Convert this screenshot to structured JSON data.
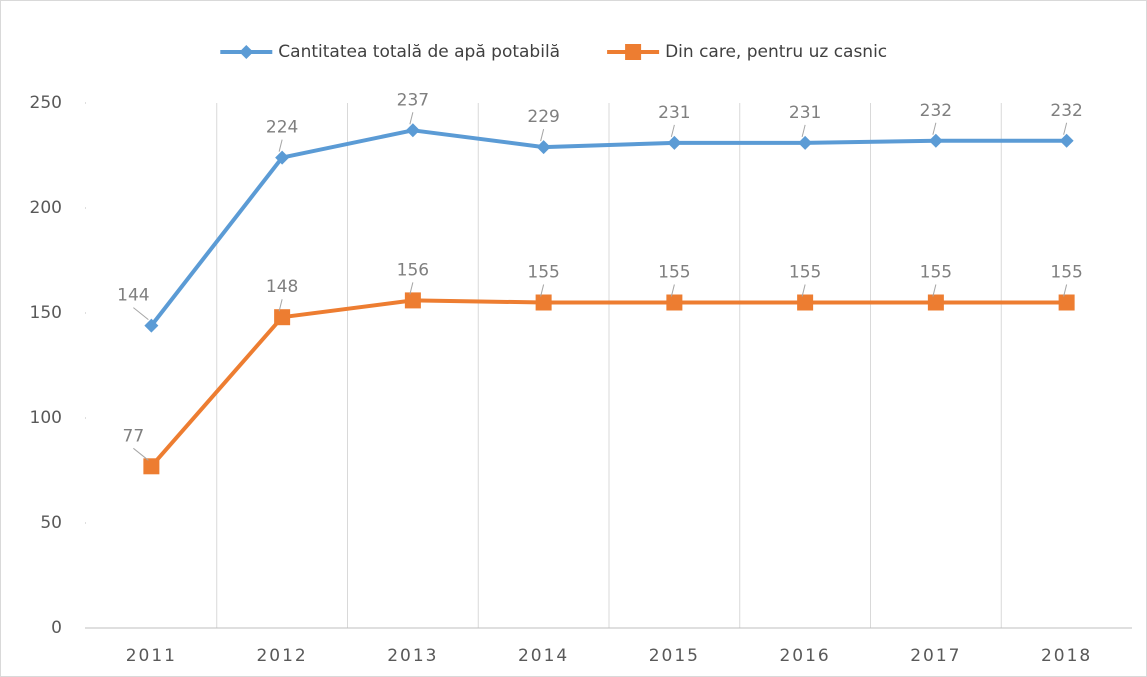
{
  "chart_data": {
    "type": "line",
    "categories": [
      "2011",
      "2012",
      "2013",
      "2014",
      "2015",
      "2016",
      "2017",
      "2018"
    ],
    "series": [
      {
        "name": "Cantitatea totală de apă potabilă",
        "color": "#5b9bd5",
        "marker": "diamond",
        "values": [
          144,
          224,
          237,
          229,
          231,
          231,
          232,
          232
        ]
      },
      {
        "name": "Din care, pentru uz casnic",
        "color": "#ed7d31",
        "marker": "square",
        "values": [
          77,
          148,
          156,
          155,
          155,
          155,
          155,
          155
        ]
      }
    ],
    "ylim": [
      0,
      250
    ],
    "yticks": [
      0,
      50,
      100,
      150,
      200,
      250
    ],
    "grid": "vertical",
    "legend": "top"
  }
}
